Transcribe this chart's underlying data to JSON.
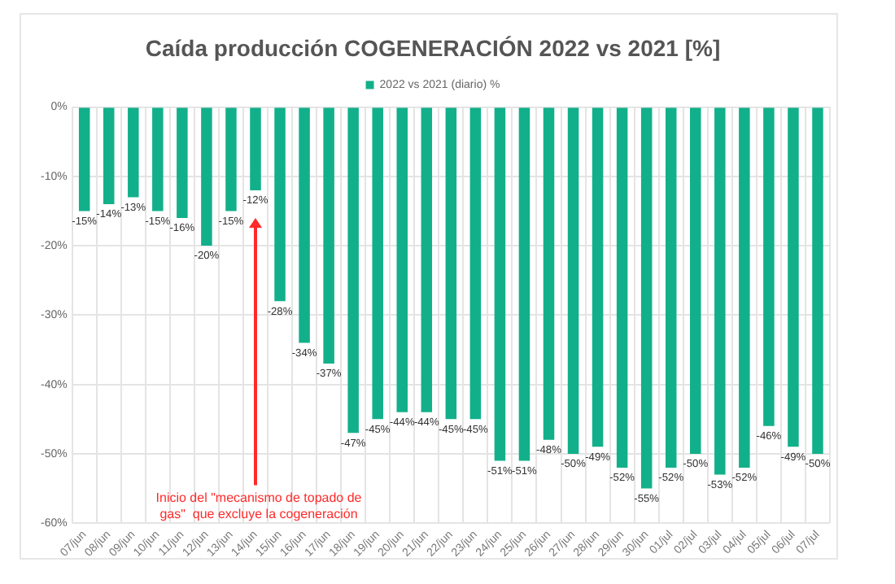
{
  "chart_data": {
    "type": "bar",
    "title": "Caída producción COGENERACIÓN 2022 vs 2021 [%]",
    "categories": [
      "07/jun",
      "08/jun",
      "09/jun",
      "10/jun",
      "11/jun",
      "12/jun",
      "13/jun",
      "14/jun",
      "15/jun",
      "16/jun",
      "17/jun",
      "18/jun",
      "19/jun",
      "20/jun",
      "21/jun",
      "22/jun",
      "23/jun",
      "24/jun",
      "25/jun",
      "26/jun",
      "27/jun",
      "28/jun",
      "29/jun",
      "30/jun",
      "01/jul",
      "02/jul",
      "03/jul",
      "04/jul",
      "05/jul",
      "06/jul",
      "07/jul"
    ],
    "series": [
      {
        "name": "2022 vs 2021 (diario) %",
        "color": "#12b08a",
        "values": [
          -15,
          -14,
          -13,
          -15,
          -16,
          -20,
          -15,
          -12,
          -28,
          -34,
          -37,
          -47,
          -45,
          -44,
          -44,
          -45,
          -45,
          -51,
          -51,
          -48,
          -50,
          -49,
          -52,
          -55,
          -52,
          -50,
          -53,
          -52,
          -46,
          -49,
          -50
        ],
        "value_labels": [
          "-15%",
          "-14%",
          "-13%",
          "-15%",
          "-16%",
          "-20%",
          "-15%",
          "-12%",
          "-28%",
          "-34%",
          "-37%",
          "-47%",
          "-45%",
          "-44%",
          "-44%",
          "-45%",
          "-45%",
          "-51%",
          "-51%",
          "-48%",
          "-50%",
          "-49%",
          "-52%",
          "-55%",
          "-52%",
          "-50%",
          "-53%",
          "-52%",
          "-46%",
          "-49%",
          "-50%"
        ]
      }
    ],
    "ylim": [
      -60,
      0
    ],
    "yticks": [
      {
        "value": -60,
        "label": "-60%"
      },
      {
        "value": -50,
        "label": "-50%"
      },
      {
        "value": -40,
        "label": "-40%"
      },
      {
        "value": -30,
        "label": "-30%"
      },
      {
        "value": -20,
        "label": "-20%"
      },
      {
        "value": -10,
        "label": "-10%"
      },
      {
        "value": 0,
        "label": "0%"
      }
    ],
    "grid": true,
    "legend": "top",
    "annotations": [
      "Inicio del \"mecanismo de topado de\ngas\"  que excluye la cogeneración"
    ]
  }
}
